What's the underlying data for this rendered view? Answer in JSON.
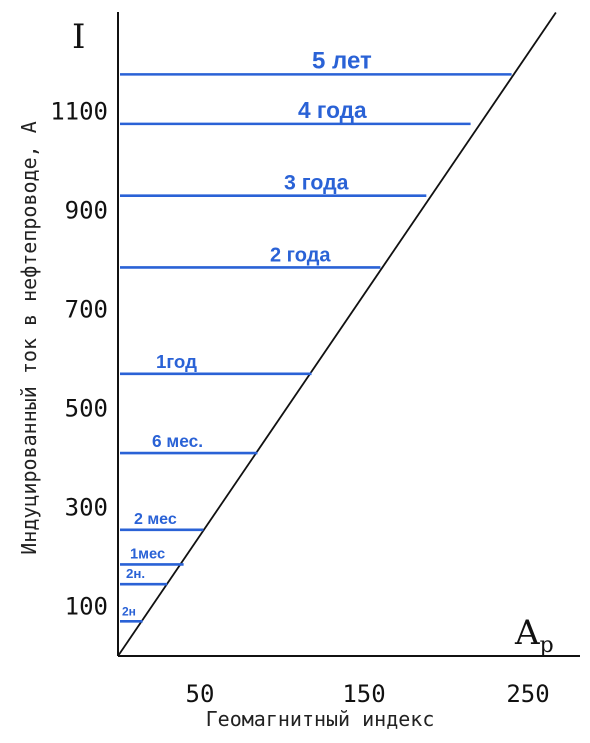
{
  "chart_data": {
    "type": "line",
    "title": "",
    "y_symbol": "I",
    "x_symbol": "A",
    "x_symbol_sub": "p",
    "xlabel": "Геомагнитный индекс",
    "ylabel": "Индуцированный ток в нефтепроводе, А",
    "x_ticks": [
      "50",
      "150",
      "250"
    ],
    "y_ticks": [
      "100",
      "300",
      "500",
      "700",
      "900",
      "1100"
    ],
    "xlim": [
      0,
      280
    ],
    "ylim": [
      0,
      1300
    ],
    "grid": false,
    "boundary_line": {
      "x": [
        0,
        267
      ],
      "y": [
        0,
        1300
      ]
    },
    "series": [
      {
        "name": "2н",
        "current": 70,
        "index_max": 15
      },
      {
        "name": "2н.",
        "current": 145,
        "index_max": 30
      },
      {
        "name": "1мес",
        "current": 185,
        "index_max": 40
      },
      {
        "name": "2 мес",
        "current": 255,
        "index_max": 52
      },
      {
        "name": "6 мес.",
        "current": 410,
        "index_max": 85
      },
      {
        "name": "1год",
        "current": 570,
        "index_max": 118
      },
      {
        "name": "2 года",
        "current": 785,
        "index_max": 160
      },
      {
        "name": "3 года",
        "current": 930,
        "index_max": 188
      },
      {
        "name": "4 года",
        "current": 1075,
        "index_max": 215
      },
      {
        "name": "5 лет",
        "current": 1175,
        "index_max": 240
      }
    ]
  }
}
